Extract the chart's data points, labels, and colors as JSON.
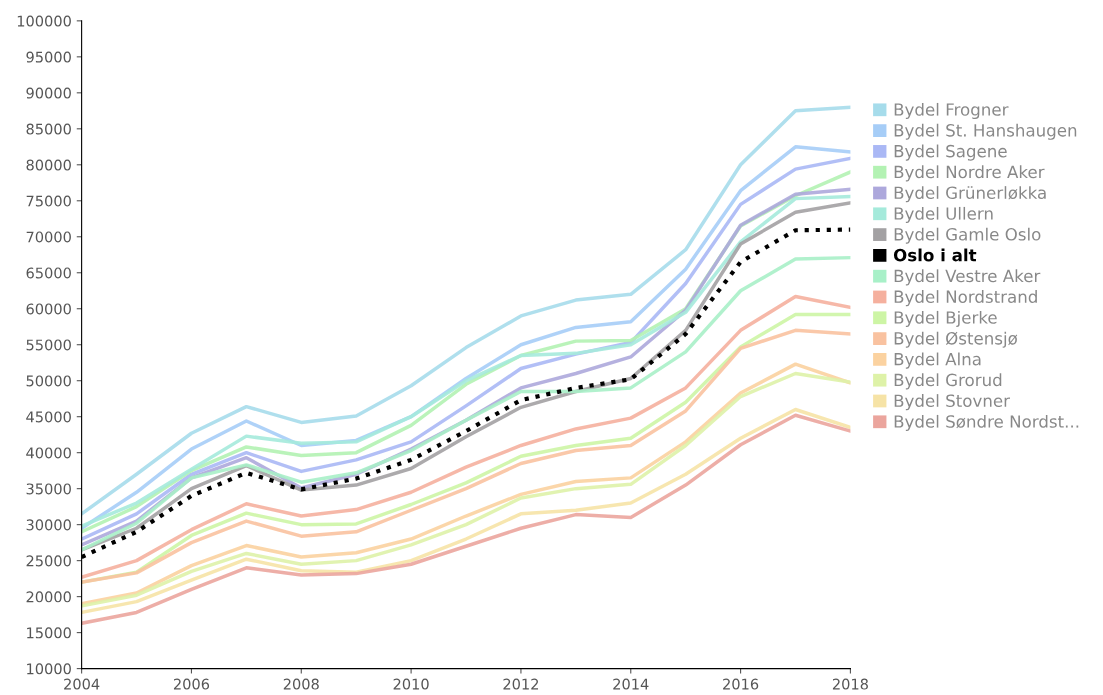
{
  "chart_data": {
    "type": "line",
    "x": [
      2004,
      2005,
      2006,
      2007,
      2008,
      2009,
      2010,
      2011,
      2012,
      2013,
      2014,
      2015,
      2016,
      2017,
      2018
    ],
    "xlim": [
      2004,
      2018
    ],
    "xticks": [
      2004,
      2006,
      2008,
      2010,
      2012,
      2014,
      2016,
      2018
    ],
    "ylim": [
      10000,
      100000
    ],
    "yticks": [
      10000,
      15000,
      20000,
      25000,
      30000,
      35000,
      40000,
      45000,
      50000,
      55000,
      60000,
      65000,
      70000,
      75000,
      80000,
      85000,
      90000,
      95000,
      100000
    ],
    "grid": false,
    "legend": "right",
    "marker": "none",
    "series": [
      {
        "name": "Bydel Frogner",
        "color": "#a6dceb",
        "values": [
          31500,
          37000,
          42700,
          46400,
          44200,
          45100,
          49300,
          54600,
          59000,
          61200,
          62000,
          68200,
          80000,
          87500,
          88000
        ]
      },
      {
        "name": "Bydel St. Hanshaugen",
        "color": "#a6cdf7",
        "values": [
          29500,
          34500,
          40500,
          44400,
          41000,
          41700,
          45000,
          50300,
          55000,
          57400,
          58200,
          65500,
          76400,
          82500,
          81800
        ]
      },
      {
        "name": "Bydel Sagene",
        "color": "#aab8f5",
        "values": [
          28000,
          31500,
          37000,
          40000,
          37400,
          39000,
          41500,
          46500,
          51700,
          53700,
          55300,
          63500,
          74500,
          79400,
          80900
        ]
      },
      {
        "name": "Bydel Nordre Aker",
        "color": "#b3f2b3",
        "values": [
          29000,
          32500,
          37500,
          40800,
          39600,
          40000,
          43800,
          49500,
          53500,
          55500,
          55600,
          60000,
          71500,
          75700,
          79000
        ]
      },
      {
        "name": "Bydel Grünerløkka",
        "color": "#ada8dc",
        "values": [
          27200,
          30500,
          36500,
          39300,
          35100,
          37000,
          40500,
          44500,
          49000,
          51000,
          53300,
          59800,
          71600,
          75900,
          76600
        ]
      },
      {
        "name": "Bydel Ullern",
        "color": "#a5eadb",
        "values": [
          29800,
          33000,
          37700,
          42300,
          41300,
          41500,
          45000,
          50000,
          53500,
          53800,
          55000,
          59500,
          69300,
          75300,
          75600
        ]
      },
      {
        "name": "Bydel Gamle Oslo",
        "color": "#a3a1a3",
        "values": [
          26500,
          29500,
          35000,
          38200,
          34800,
          35500,
          37800,
          42200,
          46300,
          48500,
          50300,
          57000,
          69000,
          73400,
          74700
        ]
      },
      {
        "name": "Oslo i alt",
        "color": "#000000",
        "line_style": "dotted",
        "values": [
          25500,
          29000,
          34000,
          37200,
          34900,
          36400,
          39000,
          43000,
          47300,
          49000,
          50200,
          56500,
          66500,
          70900,
          71000
        ]
      },
      {
        "name": "Bydel Vestre Aker",
        "color": "#a8f0c8",
        "values": [
          26500,
          30200,
          36500,
          38300,
          35900,
          37200,
          40300,
          44500,
          48500,
          48500,
          49000,
          54000,
          62500,
          66900,
          67100
        ]
      },
      {
        "name": "Bydel Nordstrand",
        "color": "#f5b09e",
        "values": [
          22700,
          25000,
          29300,
          32900,
          31200,
          32100,
          34500,
          38000,
          41000,
          43300,
          44800,
          49000,
          57000,
          61700,
          60200
        ]
      },
      {
        "name": "Bydel Bjerke",
        "color": "#cdf5a5",
        "values": [
          22000,
          23400,
          28500,
          31600,
          30000,
          30100,
          32800,
          35800,
          39500,
          41000,
          42000,
          47000,
          54700,
          59200,
          59200
        ]
      },
      {
        "name": "Bydel Østensjø",
        "color": "#f9c2a0",
        "values": [
          22000,
          23300,
          27500,
          30500,
          28400,
          29000,
          32000,
          35000,
          38500,
          40300,
          41000,
          45800,
          54500,
          57000,
          56500
        ]
      },
      {
        "name": "Bydel Alna",
        "color": "#fbd2a0",
        "values": [
          19000,
          20500,
          24300,
          27100,
          25500,
          26100,
          28000,
          31200,
          34200,
          36000,
          36500,
          41500,
          48300,
          52300,
          49700
        ]
      },
      {
        "name": "Bydel Grorud",
        "color": "#def2a8",
        "values": [
          18700,
          20200,
          23500,
          26000,
          24500,
          25000,
          27200,
          30000,
          33700,
          35000,
          35600,
          41000,
          47800,
          51000,
          49800
        ]
      },
      {
        "name": "Bydel Stovner",
        "color": "#f6e3a6",
        "values": [
          17800,
          19300,
          22300,
          25200,
          23600,
          23400,
          25000,
          28000,
          31500,
          32000,
          33000,
          37000,
          42000,
          46000,
          43500
        ]
      },
      {
        "name": "Bydel Søndre Nordst...",
        "color": "#eba59d",
        "values": [
          16300,
          17800,
          21000,
          24000,
          23000,
          23200,
          24500,
          27000,
          29500,
          31400,
          31000,
          35500,
          41100,
          45200,
          43000
        ]
      }
    ]
  }
}
